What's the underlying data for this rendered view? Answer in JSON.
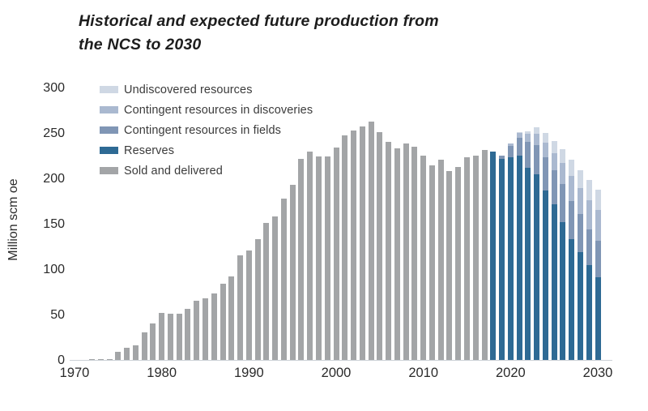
{
  "figure": {
    "title_line1": "Historical and expected future production from",
    "title_line2": "the NCS to 2030"
  },
  "chart_data": {
    "type": "bar",
    "stacked": true,
    "title": "Historical and expected future production from the NCS to 2030",
    "xlabel": "",
    "ylabel": "Million scm oe",
    "ylim": [
      0,
      300
    ],
    "yticks": [
      0,
      50,
      100,
      150,
      200,
      250,
      300
    ],
    "xticks": [
      1970,
      1980,
      1990,
      2000,
      2010,
      2020,
      2030
    ],
    "grid": false,
    "legend_position": "upper-left",
    "axis_color": "#ccd1d6",
    "legend": [
      {
        "key": "undiscovered",
        "label": "Undiscovered resources",
        "color": "#cfd8e4"
      },
      {
        "key": "contingent_discoveries",
        "label": "Contingent resources in discoveries",
        "color": "#aab9d0"
      },
      {
        "key": "contingent_fields",
        "label": "Contingent resources in fields",
        "color": "#8096b5"
      },
      {
        "key": "reserves",
        "label": "Reserves",
        "color": "#2e6a94"
      },
      {
        "key": "sold_and_delivered",
        "label": "Sold and delivered",
        "color": "#a3a5a7"
      }
    ],
    "historical_years": [
      1970,
      1971,
      1972,
      1973,
      1974,
      1975,
      1976,
      1977,
      1978,
      1979,
      1980,
      1981,
      1982,
      1983,
      1984,
      1985,
      1986,
      1987,
      1988,
      1989,
      1990,
      1991,
      1992,
      1993,
      1994,
      1995,
      1996,
      1997,
      1998,
      1999,
      2000,
      2001,
      2002,
      2003,
      2004,
      2005,
      2006,
      2007,
      2008,
      2009,
      2010,
      2011,
      2012,
      2013,
      2014,
      2015,
      2016,
      2017
    ],
    "sold_and_delivered": [
      0,
      1,
      2,
      2,
      2,
      10,
      14,
      17,
      31,
      41,
      53,
      52,
      52,
      57,
      66,
      69,
      74,
      85,
      93,
      116,
      121,
      134,
      152,
      159,
      179,
      194,
      222,
      230,
      225,
      225,
      235,
      248,
      254,
      258,
      263,
      252,
      241,
      234,
      239,
      236,
      226,
      215,
      221,
      209,
      213,
      224,
      226,
      232
    ],
    "forecast_years": [
      2018,
      2019,
      2020,
      2021,
      2022,
      2023,
      2024,
      2025,
      2026,
      2027,
      2028,
      2029,
      2030
    ],
    "reserves": [
      230,
      222,
      224,
      226,
      213,
      205,
      188,
      172,
      153,
      134,
      120,
      105,
      92
    ],
    "contingent_fields": [
      0,
      4,
      12,
      20,
      28,
      32,
      36,
      38,
      42,
      42,
      42,
      40,
      40
    ],
    "contingent_discoveries": [
      0,
      0,
      3,
      5,
      9,
      13,
      16,
      19,
      23,
      27,
      28,
      32,
      34
    ],
    "undiscovered": [
      0,
      0,
      0,
      1,
      3,
      7,
      11,
      13,
      15,
      18,
      20,
      22,
      22
    ]
  }
}
